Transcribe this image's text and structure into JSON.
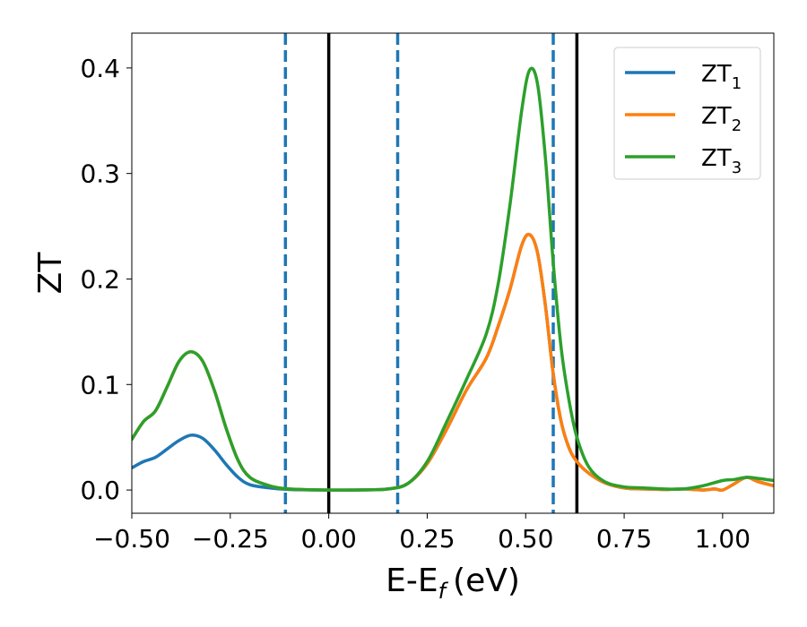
{
  "chart_data": {
    "type": "line",
    "title": "",
    "xlabel": "E-E",
    "xlabel_sub": "f",
    "xlabel_unit": "(eV)",
    "ylabel": "ZT",
    "xlim": [
      -0.5,
      1.13
    ],
    "ylim": [
      -0.022,
      0.433
    ],
    "xticks": [
      -0.5,
      -0.25,
      0.0,
      0.25,
      0.5,
      0.75,
      1.0
    ],
    "xtick_labels": [
      "−0.50",
      "−0.25",
      "0.00",
      "0.25",
      "0.50",
      "0.75",
      "1.00"
    ],
    "yticks": [
      0.0,
      0.1,
      0.2,
      0.3,
      0.4
    ],
    "ytick_labels": [
      "0.0",
      "0.1",
      "0.2",
      "0.3",
      "0.4"
    ],
    "grid": false,
    "legend_position": "top-right",
    "vlines": [
      {
        "x": -0.11,
        "style": "dashed",
        "color": "#1f77b4"
      },
      {
        "x": 0.0,
        "style": "solid",
        "color": "#000000"
      },
      {
        "x": 0.175,
        "style": "dashed",
        "color": "#1f77b4"
      },
      {
        "x": 0.57,
        "style": "dashed",
        "color": "#1f77b4"
      },
      {
        "x": 0.63,
        "style": "solid",
        "color": "#000000"
      }
    ],
    "series": [
      {
        "name": "ZT",
        "sub": "1",
        "color": "#1f77b4",
        "points": [
          [
            -0.5,
            0.021
          ],
          [
            -0.47,
            0.027
          ],
          [
            -0.44,
            0.031
          ],
          [
            -0.41,
            0.039
          ],
          [
            -0.38,
            0.047
          ],
          [
            -0.35,
            0.052
          ],
          [
            -0.32,
            0.049
          ],
          [
            -0.29,
            0.038
          ],
          [
            -0.26,
            0.024
          ],
          [
            -0.23,
            0.012
          ],
          [
            -0.2,
            0.005
          ],
          [
            -0.15,
            0.002
          ],
          [
            -0.1,
            0.0005
          ],
          [
            0.0,
            0.0
          ],
          [
            0.1,
            0.0002
          ],
          [
            0.15,
            0.001
          ],
          [
            0.2,
            0.006
          ],
          [
            0.25,
            0.025
          ],
          [
            0.3,
            0.058
          ],
          [
            0.35,
            0.095
          ],
          [
            0.4,
            0.125
          ],
          [
            0.43,
            0.155
          ],
          [
            0.46,
            0.19
          ],
          [
            0.49,
            0.232
          ],
          [
            0.51,
            0.242
          ],
          [
            0.53,
            0.225
          ],
          [
            0.55,
            0.175
          ],
          [
            0.57,
            0.11
          ],
          [
            0.59,
            0.065
          ],
          [
            0.61,
            0.04
          ],
          [
            0.63,
            0.027
          ],
          [
            0.66,
            0.016
          ],
          [
            0.7,
            0.007
          ],
          [
            0.75,
            0.002
          ],
          [
            0.8,
            0.001
          ],
          [
            0.85,
            0.0005
          ],
          [
            0.9,
            0.001
          ],
          [
            0.95,
            0.0
          ],
          [
            0.98,
            0.001
          ],
          [
            1.0,
            0.0
          ],
          [
            1.03,
            0.006
          ],
          [
            1.06,
            0.012
          ],
          [
            1.09,
            0.008
          ],
          [
            1.13,
            0.004
          ]
        ]
      },
      {
        "name": "ZT",
        "sub": "2",
        "color": "#ff7f0e",
        "points": [
          [
            -0.5,
            0.048
          ],
          [
            -0.47,
            0.065
          ],
          [
            -0.44,
            0.075
          ],
          [
            -0.41,
            0.098
          ],
          [
            -0.38,
            0.122
          ],
          [
            -0.35,
            0.131
          ],
          [
            -0.32,
            0.122
          ],
          [
            -0.29,
            0.094
          ],
          [
            -0.26,
            0.058
          ],
          [
            -0.23,
            0.028
          ],
          [
            -0.2,
            0.012
          ],
          [
            -0.15,
            0.004
          ],
          [
            -0.1,
            0.001
          ],
          [
            0.0,
            0.0
          ],
          [
            0.1,
            0.0002
          ],
          [
            0.15,
            0.001
          ],
          [
            0.2,
            0.006
          ],
          [
            0.25,
            0.025
          ],
          [
            0.3,
            0.058
          ],
          [
            0.35,
            0.095
          ],
          [
            0.4,
            0.125
          ],
          [
            0.43,
            0.155
          ],
          [
            0.46,
            0.19
          ],
          [
            0.49,
            0.232
          ],
          [
            0.51,
            0.242
          ],
          [
            0.53,
            0.225
          ],
          [
            0.55,
            0.175
          ],
          [
            0.57,
            0.11
          ],
          [
            0.59,
            0.065
          ],
          [
            0.61,
            0.04
          ],
          [
            0.63,
            0.027
          ],
          [
            0.66,
            0.016
          ],
          [
            0.7,
            0.007
          ],
          [
            0.75,
            0.002
          ],
          [
            0.8,
            0.001
          ],
          [
            0.85,
            0.0005
          ],
          [
            0.9,
            0.001
          ],
          [
            0.95,
            0.0
          ],
          [
            0.98,
            0.001
          ],
          [
            1.0,
            0.0
          ],
          [
            1.03,
            0.006
          ],
          [
            1.06,
            0.012
          ],
          [
            1.09,
            0.008
          ],
          [
            1.13,
            0.004
          ]
        ]
      },
      {
        "name": "ZT",
        "sub": "3",
        "color": "#2ca02c",
        "points": [
          [
            -0.5,
            0.048
          ],
          [
            -0.47,
            0.065
          ],
          [
            -0.44,
            0.075
          ],
          [
            -0.41,
            0.098
          ],
          [
            -0.38,
            0.122
          ],
          [
            -0.35,
            0.131
          ],
          [
            -0.32,
            0.122
          ],
          [
            -0.29,
            0.094
          ],
          [
            -0.26,
            0.058
          ],
          [
            -0.23,
            0.028
          ],
          [
            -0.2,
            0.012
          ],
          [
            -0.15,
            0.004
          ],
          [
            -0.1,
            0.001
          ],
          [
            0.0,
            0.0
          ],
          [
            0.1,
            0.0002
          ],
          [
            0.15,
            0.001
          ],
          [
            0.2,
            0.006
          ],
          [
            0.25,
            0.027
          ],
          [
            0.3,
            0.065
          ],
          [
            0.35,
            0.105
          ],
          [
            0.4,
            0.148
          ],
          [
            0.43,
            0.195
          ],
          [
            0.46,
            0.27
          ],
          [
            0.49,
            0.36
          ],
          [
            0.51,
            0.398
          ],
          [
            0.53,
            0.385
          ],
          [
            0.55,
            0.315
          ],
          [
            0.57,
            0.215
          ],
          [
            0.59,
            0.135
          ],
          [
            0.61,
            0.085
          ],
          [
            0.63,
            0.05
          ],
          [
            0.66,
            0.022
          ],
          [
            0.7,
            0.008
          ],
          [
            0.75,
            0.003
          ],
          [
            0.8,
            0.002
          ],
          [
            0.85,
            0.001
          ],
          [
            0.9,
            0.001
          ],
          [
            0.95,
            0.004
          ],
          [
            1.0,
            0.009
          ],
          [
            1.03,
            0.01
          ],
          [
            1.06,
            0.012
          ],
          [
            1.09,
            0.011
          ],
          [
            1.13,
            0.009
          ]
        ]
      }
    ]
  }
}
